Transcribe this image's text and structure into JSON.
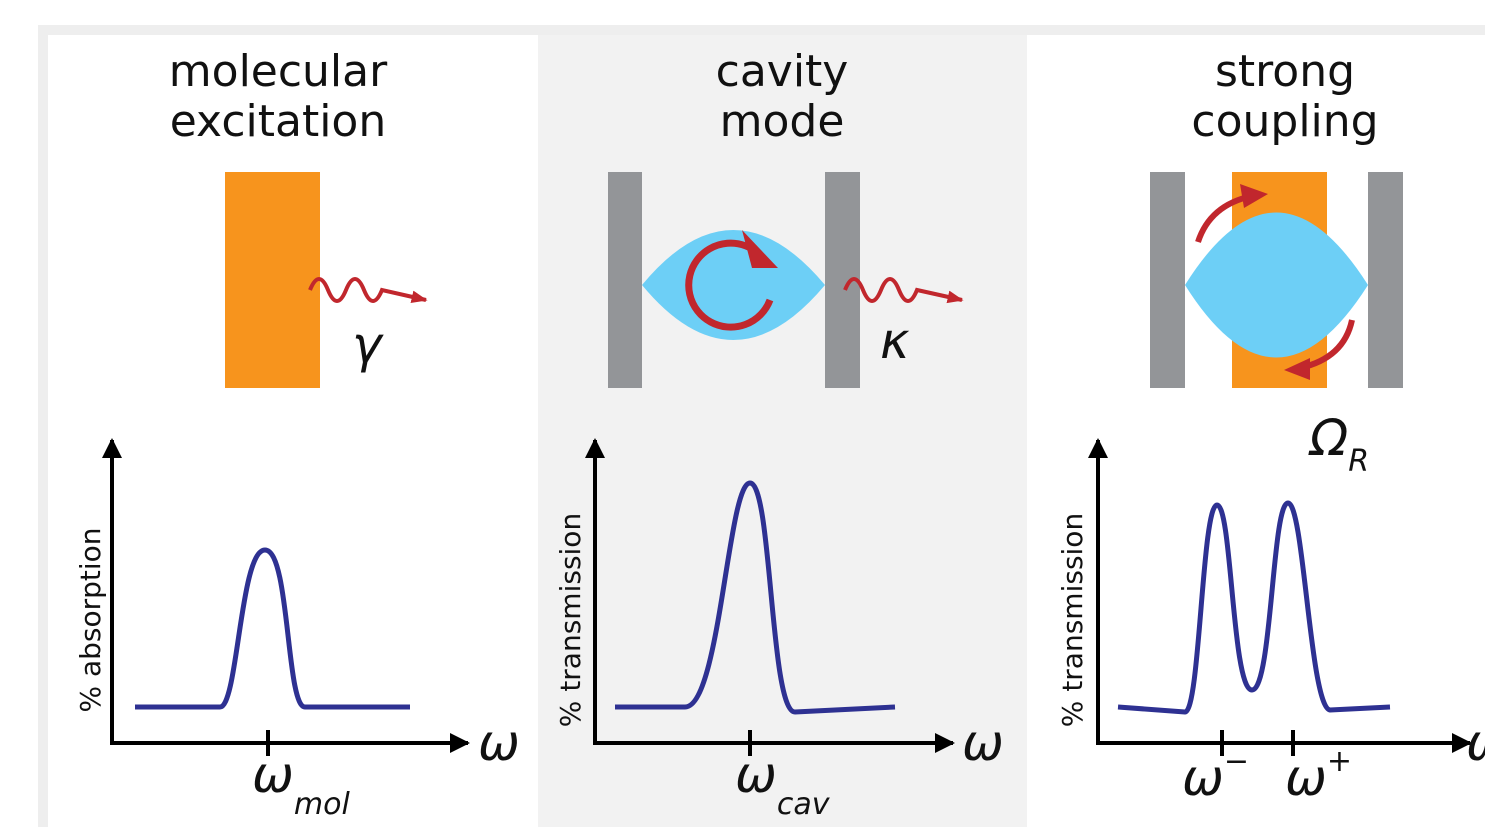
{
  "panels": [
    {
      "title": [
        "molecular",
        "excitation"
      ],
      "decay_symbol": "γ",
      "y_axis_label": "% absorption",
      "x_axis_label": "ω",
      "peak_labels": [
        {
          "symbol": "ω",
          "subscript": "mol"
        }
      ]
    },
    {
      "title": [
        "cavity",
        "mode"
      ],
      "decay_symbol": "κ",
      "y_axis_label": "% transmission",
      "x_axis_label": "ω",
      "peak_labels": [
        {
          "symbol": "ω",
          "subscript": "cav"
        }
      ]
    },
    {
      "title": [
        "strong",
        "coupling"
      ],
      "coupling_symbol": {
        "symbol": "Ω",
        "subscript": "R"
      },
      "y_axis_label": "% transmission",
      "x_axis_label": "ω",
      "peak_labels": [
        {
          "symbol": "ω",
          "superscript": "−"
        },
        {
          "symbol": "ω",
          "superscript": "+"
        }
      ]
    }
  ]
}
